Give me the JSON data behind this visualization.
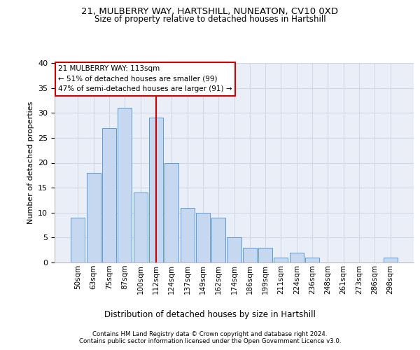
{
  "title_line1": "21, MULBERRY WAY, HARTSHILL, NUNEATON, CV10 0XD",
  "title_line2": "Size of property relative to detached houses in Hartshill",
  "xlabel": "Distribution of detached houses by size in Hartshill",
  "ylabel": "Number of detached properties",
  "footer_line1": "Contains HM Land Registry data © Crown copyright and database right 2024.",
  "footer_line2": "Contains public sector information licensed under the Open Government Licence v3.0.",
  "annotation_line1": "21 MULBERRY WAY: 113sqm",
  "annotation_line2": "← 51% of detached houses are smaller (99)",
  "annotation_line3": "47% of semi-detached houses are larger (91) →",
  "bar_color": "#c5d8f0",
  "bar_edgecolor": "#5b9bd5",
  "vline_color": "#cc0000",
  "categories": [
    "50sqm",
    "63sqm",
    "75sqm",
    "87sqm",
    "100sqm",
    "112sqm",
    "124sqm",
    "137sqm",
    "149sqm",
    "162sqm",
    "174sqm",
    "186sqm",
    "199sqm",
    "211sqm",
    "224sqm",
    "236sqm",
    "248sqm",
    "261sqm",
    "273sqm",
    "286sqm",
    "298sqm"
  ],
  "values": [
    9,
    18,
    27,
    31,
    14,
    29,
    20,
    11,
    10,
    9,
    5,
    3,
    3,
    1,
    2,
    1,
    0,
    0,
    0,
    0,
    1
  ],
  "ylim": [
    0,
    40
  ],
  "yticks": [
    0,
    5,
    10,
    15,
    20,
    25,
    30,
    35,
    40
  ],
  "grid_color": "#d0d8e8",
  "bg_color": "#eaeff7"
}
